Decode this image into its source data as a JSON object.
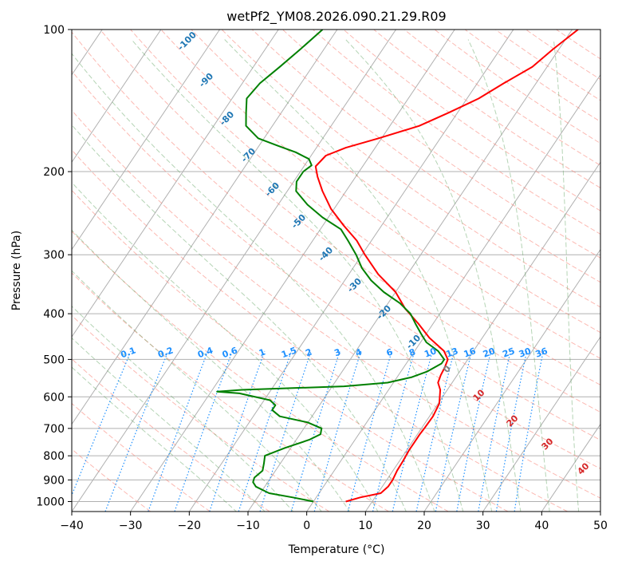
{
  "chart_data": {
    "type": "skew-t log-p",
    "title": "wetPf2_YM08.2026.090.21.29.R09",
    "xlabel": "Temperature (°C)",
    "ylabel": "Pressure (hPa)",
    "xlim": [
      -40,
      50
    ],
    "ylim": [
      1050,
      100
    ],
    "yscale": "log",
    "xticks": [
      -40,
      -30,
      -20,
      -10,
      0,
      10,
      20,
      30,
      40,
      50
    ],
    "yticks": [
      100,
      200,
      300,
      400,
      500,
      600,
      700,
      800,
      900,
      1000
    ],
    "grid": true,
    "series": [
      {
        "key": "temperature",
        "color": "#ff0000",
        "points": [
          [
            1000,
            5.5
          ],
          [
            980,
            7.5
          ],
          [
            960,
            10.5
          ],
          [
            930,
            11.0
          ],
          [
            900,
            11.0
          ],
          [
            860,
            10.7
          ],
          [
            820,
            10.6
          ],
          [
            780,
            10.4
          ],
          [
            750,
            10.4
          ],
          [
            720,
            10.4
          ],
          [
            700,
            10.5
          ],
          [
            660,
            10.6
          ],
          [
            620,
            10.2
          ],
          [
            580,
            8.8
          ],
          [
            560,
            7.6
          ],
          [
            540,
            7.2
          ],
          [
            520,
            7.0
          ],
          [
            500,
            6.6
          ],
          [
            480,
            5.0
          ],
          [
            450,
            1.0
          ],
          [
            420,
            -2.5
          ],
          [
            390,
            -6.5
          ],
          [
            360,
            -10.0
          ],
          [
            330,
            -15.0
          ],
          [
            300,
            -19.5
          ],
          [
            280,
            -22.5
          ],
          [
            260,
            -26.5
          ],
          [
            240,
            -30.5
          ],
          [
            220,
            -34.0
          ],
          [
            205,
            -36.5
          ],
          [
            195,
            -38.0
          ],
          [
            185,
            -37.5
          ],
          [
            178,
            -35.0
          ],
          [
            170,
            -30.5
          ],
          [
            160,
            -25.0
          ],
          [
            150,
            -21.5
          ],
          [
            140,
            -18.0
          ],
          [
            130,
            -15.5
          ],
          [
            120,
            -12.5
          ],
          [
            110,
            -11.0
          ],
          [
            100,
            -9.0
          ]
        ]
      },
      {
        "key": "dewpoint",
        "color": "#008000",
        "points": [
          [
            1000,
            0.0
          ],
          [
            980,
            -4.0
          ],
          [
            960,
            -8.5
          ],
          [
            930,
            -11.5
          ],
          [
            910,
            -12.5
          ],
          [
            890,
            -12.8
          ],
          [
            860,
            -12.2
          ],
          [
            830,
            -12.8
          ],
          [
            800,
            -13.5
          ],
          [
            770,
            -11.0
          ],
          [
            740,
            -7.8
          ],
          [
            720,
            -6.5
          ],
          [
            700,
            -7.0
          ],
          [
            680,
            -10.0
          ],
          [
            660,
            -15.5
          ],
          [
            640,
            -17.5
          ],
          [
            625,
            -17.5
          ],
          [
            610,
            -19.0
          ],
          [
            590,
            -25.0
          ],
          [
            585,
            -29.0
          ],
          [
            580,
            -25.0
          ],
          [
            570,
            -8.0
          ],
          [
            560,
            -1.0
          ],
          [
            545,
            2.5
          ],
          [
            530,
            4.5
          ],
          [
            510,
            6.0
          ],
          [
            500,
            6.0
          ],
          [
            480,
            4.0
          ],
          [
            460,
            1.0
          ],
          [
            440,
            -1.0
          ],
          [
            420,
            -3.0
          ],
          [
            400,
            -5.0
          ],
          [
            380,
            -8.0
          ],
          [
            360,
            -12.0
          ],
          [
            340,
            -15.5
          ],
          [
            320,
            -18.5
          ],
          [
            300,
            -21.0
          ],
          [
            280,
            -24.0
          ],
          [
            265,
            -26.5
          ],
          [
            250,
            -31.0
          ],
          [
            235,
            -35.0
          ],
          [
            220,
            -38.5
          ],
          [
            210,
            -39.5
          ],
          [
            200,
            -39.5
          ],
          [
            194,
            -38.8
          ],
          [
            188,
            -40.0
          ],
          [
            182,
            -43.0
          ],
          [
            176,
            -47.0
          ],
          [
            170,
            -51.0
          ],
          [
            160,
            -54.5
          ],
          [
            150,
            -56.0
          ],
          [
            140,
            -57.5
          ],
          [
            130,
            -57.0
          ],
          [
            120,
            -55.5
          ],
          [
            110,
            -54.0
          ],
          [
            100,
            -52.5
          ]
        ]
      }
    ],
    "dry_adiabat_labels_C": [
      -100,
      -90,
      -80,
      -70,
      -60,
      -50,
      -40,
      -30,
      -20,
      -10
    ],
    "mixing_ratio_labels": [
      "0.1",
      "0.2",
      "0.4",
      "0.6",
      "1",
      "1.5",
      "2",
      "3",
      "4",
      "6",
      "8",
      "10",
      "13",
      "16",
      "20",
      "25",
      "30",
      "36"
    ],
    "moist_adiabat_labels_C": [
      "0",
      "10",
      "20",
      "30",
      "40"
    ],
    "colors": {
      "grid": "#b0b0b0",
      "dry_adiabat": "#fa8072",
      "moist_adiabat": "#5aa05a",
      "mixing_ratio": "#1e90ff",
      "dry_label": "#1f77b4",
      "mixing_label": "#1e90ff",
      "moist_label_zero": "#808080",
      "moist_label": "#d62728",
      "outer_curve": "#d2b48c"
    }
  }
}
